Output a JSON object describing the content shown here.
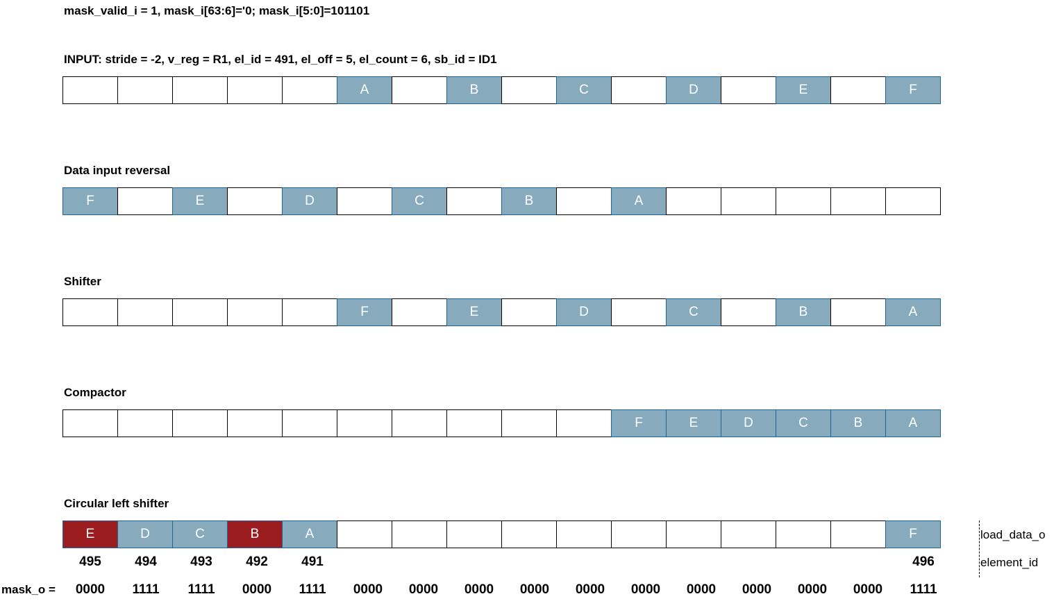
{
  "header_line": "mask_valid_i = 1, mask_i[63:6]='0; mask_i[5:0]=101101",
  "input_line": "INPUT: stride = -2, v_reg = R1, el_id = 491, el_off = 5, el_count = 6, sb_id = ID1",
  "colors": {
    "blue": "#87abbc",
    "red": "#9b1d20",
    "border_blue": "#1f6397"
  },
  "stages": [
    {
      "title": "",
      "cells": [
        {
          "t": "",
          "c": "w"
        },
        {
          "t": "",
          "c": "w"
        },
        {
          "t": "",
          "c": "w"
        },
        {
          "t": "",
          "c": "w"
        },
        {
          "t": "",
          "c": "w"
        },
        {
          "t": "A",
          "c": "b"
        },
        {
          "t": "",
          "c": "w"
        },
        {
          "t": "B",
          "c": "b"
        },
        {
          "t": "",
          "c": "w"
        },
        {
          "t": "C",
          "c": "b"
        },
        {
          "t": "",
          "c": "w"
        },
        {
          "t": "D",
          "c": "b"
        },
        {
          "t": "",
          "c": "w"
        },
        {
          "t": "E",
          "c": "b"
        },
        {
          "t": "",
          "c": "w"
        },
        {
          "t": "F",
          "c": "b"
        }
      ]
    },
    {
      "title": "Data input reversal",
      "cells": [
        {
          "t": "F",
          "c": "b"
        },
        {
          "t": "",
          "c": "w"
        },
        {
          "t": "E",
          "c": "b"
        },
        {
          "t": "",
          "c": "w"
        },
        {
          "t": "D",
          "c": "b"
        },
        {
          "t": "",
          "c": "w"
        },
        {
          "t": "C",
          "c": "b"
        },
        {
          "t": "",
          "c": "w"
        },
        {
          "t": "B",
          "c": "b"
        },
        {
          "t": "",
          "c": "w"
        },
        {
          "t": "A",
          "c": "b"
        },
        {
          "t": "",
          "c": "w"
        },
        {
          "t": "",
          "c": "w"
        },
        {
          "t": "",
          "c": "w"
        },
        {
          "t": "",
          "c": "w"
        },
        {
          "t": "",
          "c": "w"
        }
      ]
    },
    {
      "title": "Shifter",
      "cells": [
        {
          "t": "",
          "c": "w"
        },
        {
          "t": "",
          "c": "w"
        },
        {
          "t": "",
          "c": "w"
        },
        {
          "t": "",
          "c": "w"
        },
        {
          "t": "",
          "c": "w"
        },
        {
          "t": "F",
          "c": "b"
        },
        {
          "t": "",
          "c": "w"
        },
        {
          "t": "E",
          "c": "b"
        },
        {
          "t": "",
          "c": "w"
        },
        {
          "t": "D",
          "c": "b"
        },
        {
          "t": "",
          "c": "w"
        },
        {
          "t": "C",
          "c": "b"
        },
        {
          "t": "",
          "c": "w"
        },
        {
          "t": "B",
          "c": "b"
        },
        {
          "t": "",
          "c": "w"
        },
        {
          "t": "A",
          "c": "b"
        }
      ]
    },
    {
      "title": "Compactor",
      "cells": [
        {
          "t": "",
          "c": "w"
        },
        {
          "t": "",
          "c": "w"
        },
        {
          "t": "",
          "c": "w"
        },
        {
          "t": "",
          "c": "w"
        },
        {
          "t": "",
          "c": "w"
        },
        {
          "t": "",
          "c": "w"
        },
        {
          "t": "",
          "c": "w"
        },
        {
          "t": "",
          "c": "w"
        },
        {
          "t": "",
          "c": "w"
        },
        {
          "t": "",
          "c": "w"
        },
        {
          "t": "F",
          "c": "b"
        },
        {
          "t": "E",
          "c": "b"
        },
        {
          "t": "D",
          "c": "b"
        },
        {
          "t": "C",
          "c": "b"
        },
        {
          "t": "B",
          "c": "b"
        },
        {
          "t": "A",
          "c": "b"
        }
      ]
    },
    {
      "title": "Circular left shifter",
      "cells": [
        {
          "t": "E",
          "c": "r"
        },
        {
          "t": "D",
          "c": "b"
        },
        {
          "t": "C",
          "c": "b"
        },
        {
          "t": "B",
          "c": "r"
        },
        {
          "t": "A",
          "c": "b"
        },
        {
          "t": "",
          "c": "w"
        },
        {
          "t": "",
          "c": "w"
        },
        {
          "t": "",
          "c": "w"
        },
        {
          "t": "",
          "c": "w"
        },
        {
          "t": "",
          "c": "w"
        },
        {
          "t": "",
          "c": "w"
        },
        {
          "t": "",
          "c": "w"
        },
        {
          "t": "",
          "c": "w"
        },
        {
          "t": "",
          "c": "w"
        },
        {
          "t": "",
          "c": "w"
        },
        {
          "t": "F",
          "c": "b"
        }
      ]
    }
  ],
  "element_ids": [
    "495",
    "494",
    "493",
    "492",
    "491",
    "",
    "",
    "",
    "",
    "",
    "",
    "",
    "",
    "",
    "",
    "496"
  ],
  "mask_label": "mask_o =",
  "mask_values": [
    "0000",
    "1111",
    "1111",
    "0000",
    "1111",
    "0000",
    "0000",
    "0000",
    "0000",
    "0000",
    "0000",
    "0000",
    "0000",
    "0000",
    "0000",
    "1111"
  ],
  "side_labels": {
    "load_data": "load_data_o",
    "element_id": "element_id"
  }
}
